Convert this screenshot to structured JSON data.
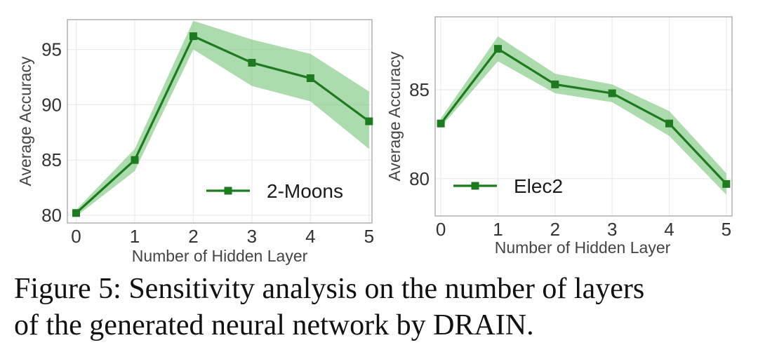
{
  "chart_data": [
    {
      "type": "line",
      "xlabel": "Number of Hidden Layer",
      "ylabel": "Average Accuracy",
      "x": [
        0,
        1,
        2,
        3,
        4,
        5
      ],
      "xticks": [
        "0",
        "1",
        "2",
        "3",
        "4",
        "5"
      ],
      "yticks": [
        "80",
        "85",
        "90",
        "95"
      ],
      "xlim": [
        -0.15,
        5.05
      ],
      "ylim": [
        79.3,
        97.7
      ],
      "grid": true,
      "legend_position": "bottom-right",
      "series": [
        {
          "name": "2-Moons",
          "values": [
            80.2,
            85.0,
            96.2,
            93.8,
            92.4,
            88.5
          ],
          "lower": [
            79.9,
            84.0,
            95.0,
            91.7,
            90.3,
            86.0
          ],
          "upper": [
            80.5,
            86.0,
            97.6,
            95.9,
            94.6,
            91.2
          ]
        }
      ],
      "line_color": "#1e7a1e",
      "band_color": "#74c476"
    },
    {
      "type": "line",
      "xlabel": "Number of Hidden Layer",
      "ylabel": "Average Accuracy",
      "x": [
        0,
        1,
        2,
        3,
        4,
        5
      ],
      "xticks": [
        "0",
        "1",
        "2",
        "3",
        "4",
        "5"
      ],
      "yticks": [
        "80",
        "85"
      ],
      "xlim": [
        -0.1,
        5.1
      ],
      "ylim": [
        77.9,
        89.1
      ],
      "grid": true,
      "legend_position": "bottom-left",
      "series": [
        {
          "name": "Elec2",
          "values": [
            83.1,
            87.3,
            85.3,
            84.8,
            83.1,
            79.7
          ],
          "lower": [
            82.9,
            86.6,
            84.8,
            84.3,
            82.4,
            79.1
          ],
          "upper": [
            83.4,
            88.0,
            85.9,
            85.3,
            83.8,
            80.3
          ]
        }
      ],
      "line_color": "#1e7a1e",
      "band_color": "#74c476"
    }
  ],
  "caption": {
    "line1": "Figure 5: Sensitivity analysis on the number of layers",
    "line2": "of the generated neural network by DRAIN."
  }
}
